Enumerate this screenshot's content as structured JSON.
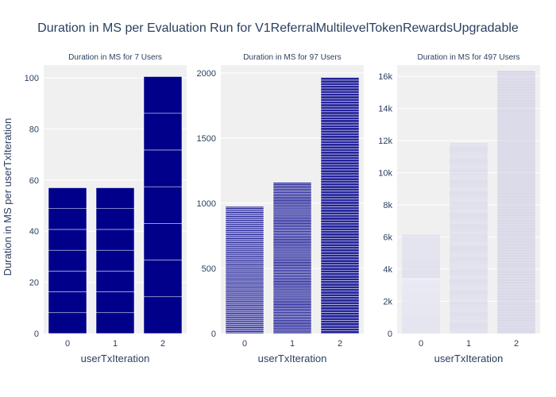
{
  "title": "Duration in MS per Evaluation Run for V1ReferralMultilevelTokenRewardsUpgradable",
  "y_axis_title": "Duration in MS per userTxIteration",
  "colors": {
    "plot_bg": "#f0f0f0",
    "grid": "#ffffff",
    "bar": "#00008b",
    "text": "#2a3f5f"
  },
  "chart_data": [
    {
      "type": "bar",
      "title": "Duration in MS for 7 Users",
      "xlabel": "userTxIteration",
      "categories": [
        "0",
        "1",
        "2"
      ],
      "values": [
        57,
        57,
        100.5
      ],
      "ylim": [
        0,
        105
      ],
      "yticks": [
        0,
        20,
        40,
        60,
        80,
        100
      ],
      "ytick_labels": [
        "0",
        "20",
        "40",
        "60",
        "80",
        "100"
      ],
      "segments": 7,
      "segment_opacity": 1.0
    },
    {
      "type": "bar",
      "title": "Duration in MS for 97 Users",
      "xlabel": "userTxIteration",
      "categories": [
        "0",
        "1",
        "2"
      ],
      "values": [
        975,
        1160,
        1965
      ],
      "ylim": [
        0,
        2060
      ],
      "yticks": [
        0,
        500,
        1000,
        1500,
        2000
      ],
      "ytick_labels": [
        "0",
        "500",
        "1000",
        "1500",
        "2000"
      ],
      "segments": 97,
      "segment_opacity": 0.85
    },
    {
      "type": "bar",
      "title": "Duration in MS for 497 Users",
      "xlabel": "userTxIteration",
      "categories": [
        "0",
        "1",
        "2"
      ],
      "values": [
        6150,
        11850,
        16350
      ],
      "ylim": [
        0,
        16700
      ],
      "yticks": [
        0,
        2000,
        4000,
        6000,
        8000,
        10000,
        12000,
        14000,
        16000
      ],
      "ytick_labels": [
        "0",
        "2k",
        "4k",
        "6k",
        "8k",
        "10k",
        "12k",
        "14k",
        "16k"
      ],
      "segments": 497,
      "segment_opacity": 0.16
    }
  ]
}
